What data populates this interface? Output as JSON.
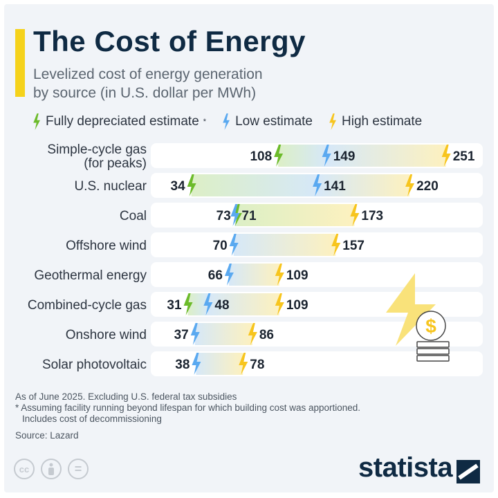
{
  "title": "The Cost of Energy",
  "subtitle_line1": "Levelized cost of energy generation",
  "subtitle_line2": "by source (in U.S. dollar per MWh)",
  "colors": {
    "accent": "#f5d21b",
    "fully_depreciated": "#6cbb2a",
    "low": "#5aa9f0",
    "high": "#f7c51e",
    "text_dark": "#0f2a43"
  },
  "chart_data": {
    "type": "range-dot",
    "title": "The Cost of Energy",
    "subtitle": "Levelized cost of energy generation by source (in U.S. dollar per MWh)",
    "legend": [
      {
        "key": "fully_depreciated",
        "label": "Fully depreciated estimate",
        "marker": "*",
        "color": "#6cbb2a",
        "icon": "lightning-bolt-icon"
      },
      {
        "key": "low",
        "label": "Low estimate",
        "color": "#5aa9f0",
        "icon": "lightning-bolt-icon"
      },
      {
        "key": "high",
        "label": "High estimate",
        "color": "#f7c51e",
        "icon": "lightning-bolt-icon"
      }
    ],
    "legend_placement": "top",
    "grid": false,
    "categories": [
      {
        "label": [
          "Simple-cycle gas",
          "(for peaks)"
        ],
        "fully_depreciated": 108,
        "low": 149,
        "high": 251
      },
      {
        "label": [
          "U.S. nuclear"
        ],
        "fully_depreciated": 34,
        "low": 141,
        "high": 220
      },
      {
        "label": [
          "Coal"
        ],
        "fully_depreciated": 73,
        "low": 71,
        "high": 173
      },
      {
        "label": [
          "Offshore wind"
        ],
        "fully_depreciated": null,
        "low": 70,
        "high": 157
      },
      {
        "label": [
          "Geothermal energy"
        ],
        "fully_depreciated": null,
        "low": 66,
        "high": 109
      },
      {
        "label": [
          "Combined-cycle gas"
        ],
        "fully_depreciated": 31,
        "low": 48,
        "high": 109
      },
      {
        "label": [
          "Onshore wind"
        ],
        "fully_depreciated": null,
        "low": 37,
        "high": 86
      },
      {
        "label": [
          "Solar photovoltaic"
        ],
        "fully_depreciated": null,
        "low": 38,
        "high": 78
      }
    ]
  },
  "notes": {
    "line1": "As of June 2025. Excluding U.S. federal tax subsidies",
    "line2": "* Assuming facility running beyond lifespan for which building cost was apportioned.",
    "line3": "Includes cost of decommissioning",
    "source": "Source: Lazard"
  },
  "footer": {
    "cc": "cc",
    "by_icon": "person-icon",
    "nd": "=",
    "logo": "statista"
  }
}
